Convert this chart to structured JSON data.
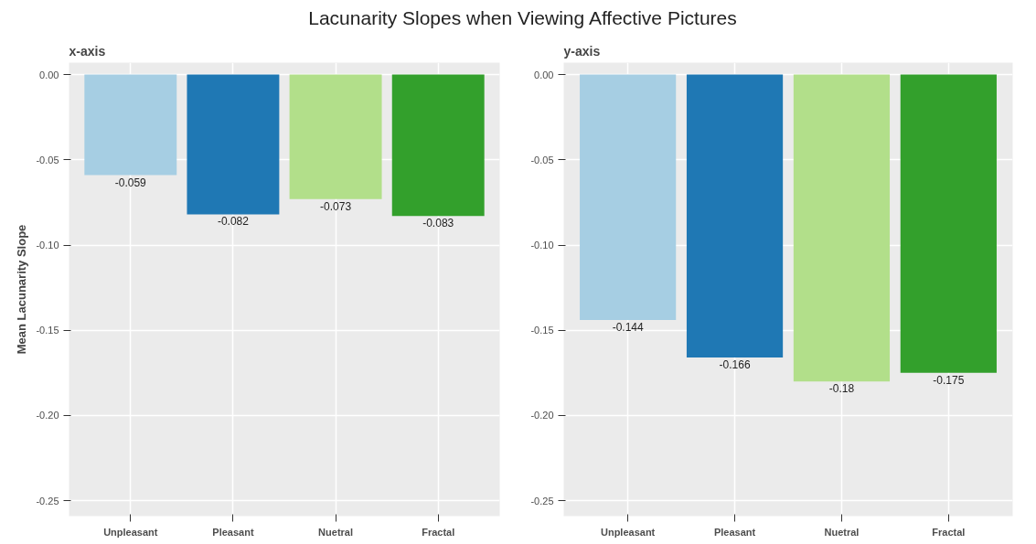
{
  "chart_data": [
    {
      "type": "bar",
      "title": "Lacunarity Slopes when Viewing Affective Pictures",
      "subtitle": "x-axis",
      "ylabel": "Mean Lacunarity Slope",
      "categories": [
        "Unpleasant",
        "Pleasant",
        "Nuetral",
        "Fractal"
      ],
      "values": [
        -0.059,
        -0.082,
        -0.073,
        -0.083
      ],
      "colors": [
        "#a6cee3",
        "#1f78b4",
        "#b2df8a",
        "#33a02c"
      ],
      "ylim": [
        -0.259,
        0.007
      ],
      "yticks": [
        {
          "value": 0,
          "label": "0.00"
        },
        {
          "value": -0.05,
          "label": "-0.05"
        },
        {
          "value": -0.1,
          "label": "-0.10"
        },
        {
          "value": -0.15,
          "label": "-0.15"
        },
        {
          "value": -0.2,
          "label": "-0.20"
        },
        {
          "value": -0.25,
          "label": "-0.25"
        }
      ],
      "grid": true,
      "data_labels": true
    },
    {
      "type": "bar",
      "subtitle": "y-axis",
      "categories": [
        "Unpleasant",
        "Pleasant",
        "Nuetral",
        "Fractal"
      ],
      "values": [
        -0.144,
        -0.166,
        -0.18,
        -0.175
      ],
      "colors": [
        "#a6cee3",
        "#1f78b4",
        "#b2df8a",
        "#33a02c"
      ],
      "ylim": [
        -0.259,
        0.007
      ],
      "yticks": [
        {
          "value": 0,
          "label": "0.00"
        },
        {
          "value": -0.05,
          "label": "-0.05"
        },
        {
          "value": -0.1,
          "label": "-0.10"
        },
        {
          "value": -0.15,
          "label": "-0.15"
        },
        {
          "value": -0.2,
          "label": "-0.20"
        },
        {
          "value": -0.25,
          "label": "-0.25"
        }
      ],
      "grid": true,
      "data_labels": true
    }
  ]
}
